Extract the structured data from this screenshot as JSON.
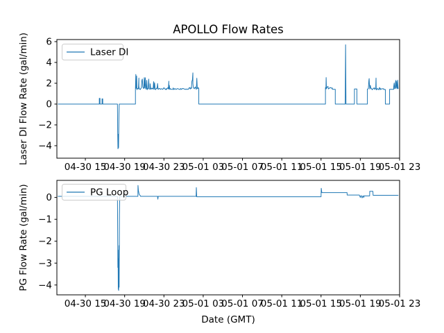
{
  "figure": {
    "title": "APOLLO Flow Rates",
    "line_color": "#1f77b4",
    "background": "#ffffff"
  },
  "chart_data": [
    {
      "type": "line",
      "title": "APOLLO Flow Rates",
      "ylabel": "Laser DI Flow Rate (gal/min)",
      "legend": [
        "Laser DI"
      ],
      "legend_position": "upper left",
      "grid": false,
      "ylim": [
        -5.2,
        6.2
      ],
      "yticks": [
        6,
        4,
        2,
        0,
        -2,
        -4
      ],
      "xlim_hours": [
        0.1,
        35.0
      ],
      "xticks_hours": [
        3,
        7,
        11,
        15,
        19,
        23,
        27,
        31,
        35
      ],
      "xtick_labels": [
        "04-30 15",
        "04-30 19",
        "04-30 23",
        "05-01 03",
        "05-01 07",
        "05-01 11",
        "05-01 15",
        "05-01 19",
        "05-01 23"
      ],
      "series_name": "Laser DI",
      "seed": 11,
      "segments": [
        {
          "type": "flat",
          "h0": 0.2,
          "h1": 4.42,
          "v": 0
        },
        {
          "type": "points",
          "pts": [
            [
              4.42,
              0.55
            ],
            [
              4.49,
              0.55
            ],
            [
              4.49,
              0
            ],
            [
              4.7,
              0
            ],
            [
              4.7,
              0.5
            ],
            [
              4.77,
              0.5
            ],
            [
              4.77,
              0
            ]
          ]
        },
        {
          "type": "flat",
          "h0": 4.77,
          "h1": 6.27,
          "v": 0
        },
        {
          "type": "points",
          "pts": [
            [
              6.29,
              -2.5
            ],
            [
              6.32,
              -4.3
            ],
            [
              6.35,
              -2.9
            ],
            [
              6.38,
              -4.2
            ],
            [
              6.42,
              -1.0
            ],
            [
              6.45,
              0
            ]
          ]
        },
        {
          "type": "flat",
          "h0": 6.45,
          "h1": 8.1,
          "v": 0
        },
        {
          "type": "noisy",
          "h0": 8.1,
          "h1": 9.6,
          "base": 1.48,
          "amp": 0.22,
          "spike_p": 0.34,
          "spike_max": 1.25,
          "features": [
            [
              8.14,
              2.85
            ],
            [
              8.22,
              2.7
            ],
            [
              8.45,
              2.5
            ]
          ]
        },
        {
          "type": "noisy",
          "h0": 9.6,
          "h1": 10.4,
          "base": 1.45,
          "amp": 0.18,
          "spike_p": 0.12,
          "spike_max": 0.8,
          "features": []
        },
        {
          "type": "noisy",
          "h0": 10.4,
          "h1": 11.25,
          "base": 1.45,
          "amp": 0.1,
          "spike_p": 0.03,
          "spike_max": 0.3,
          "features": []
        },
        {
          "type": "noisy",
          "h0": 11.25,
          "h1": 12.0,
          "base": 1.45,
          "amp": 0.16,
          "spike_p": 0.25,
          "spike_max": 0.75,
          "features": [
            [
              11.5,
              2.2
            ]
          ]
        },
        {
          "type": "noisy",
          "h0": 12.0,
          "h1": 13.45,
          "base": 1.45,
          "amp": 0.1,
          "spike_p": 0.05,
          "spike_max": 0.4,
          "features": []
        },
        {
          "type": "noisy",
          "h0": 13.45,
          "h1": 14.55,
          "base": 1.5,
          "amp": 0.2,
          "spike_p": 0.3,
          "spike_max": 1.1,
          "features": [
            [
              13.95,
              3.0
            ]
          ]
        },
        {
          "type": "flat",
          "h0": 14.55,
          "h1": 27.45,
          "v": 0
        },
        {
          "type": "noisy",
          "h0": 27.45,
          "h1": 28.15,
          "base": 1.55,
          "amp": 0.2,
          "spike_p": 0.3,
          "spike_max": 0.95,
          "features": [
            [
              27.52,
              2.55
            ]
          ]
        },
        {
          "type": "flat",
          "h0": 28.15,
          "h1": 28.45,
          "v": 1.42
        },
        {
          "type": "flat",
          "h0": 28.45,
          "h1": 29.44,
          "v": 0
        },
        {
          "type": "spike",
          "h": 29.5,
          "v": 5.7,
          "w": 0.08,
          "base": 0
        },
        {
          "type": "flat",
          "h0": 29.54,
          "h1": 30.4,
          "v": 0
        },
        {
          "type": "flat",
          "h0": 30.4,
          "h1": 30.65,
          "v": 1.45
        },
        {
          "type": "flat",
          "h0": 30.65,
          "h1": 31.72,
          "v": 0
        },
        {
          "type": "noisy",
          "h0": 31.72,
          "h1": 33.4,
          "base": 1.45,
          "amp": 0.16,
          "spike_p": 0.18,
          "spike_max": 0.9,
          "features": [
            [
              31.9,
              2.45
            ],
            [
              32.6,
              2.5
            ]
          ]
        },
        {
          "type": "flat",
          "h0": 33.4,
          "h1": 33.55,
          "v": 1.4
        },
        {
          "type": "flat",
          "h0": 33.55,
          "h1": 33.98,
          "v": 0
        },
        {
          "type": "flat",
          "h0": 33.98,
          "h1": 34.4,
          "v": 1.42
        },
        {
          "type": "noisy",
          "h0": 34.4,
          "h1": 34.88,
          "base": 1.55,
          "amp": 0.2,
          "spike_p": 0.28,
          "spike_max": 0.75,
          "features": [
            [
              34.8,
              2.3
            ]
          ]
        }
      ]
    },
    {
      "type": "line",
      "ylabel": "PG Flow Rate (gal/min)",
      "xlabel": "Date (GMT)",
      "legend": [
        "PG Loop"
      ],
      "legend_position": "upper left",
      "grid": false,
      "ylim": [
        -4.45,
        0.78
      ],
      "yticks": [
        0,
        -1,
        -2,
        -3,
        -4
      ],
      "xlim_hours": [
        0.1,
        35.0
      ],
      "xticks_hours": [
        3,
        7,
        11,
        15,
        19,
        23,
        27,
        31,
        35
      ],
      "xtick_labels": [
        "04-30 15",
        "04-30 19",
        "04-30 23",
        "05-01 03",
        "05-01 07",
        "05-01 11",
        "05-01 15",
        "05-01 19",
        "05-01 23"
      ],
      "series_name": "PG Loop",
      "seed": 7,
      "segments": [
        {
          "type": "flat",
          "h0": 0.2,
          "h1": 6.27,
          "v": 0.05
        },
        {
          "type": "points",
          "pts": [
            [
              6.29,
              -1.5
            ],
            [
              6.31,
              -3.2
            ],
            [
              6.33,
              -2.4
            ],
            [
              6.35,
              -4.2
            ],
            [
              6.37,
              -2.8
            ],
            [
              6.39,
              -4.25
            ],
            [
              6.42,
              -2.2
            ],
            [
              6.44,
              -4.1
            ],
            [
              6.47,
              -0.8
            ],
            [
              6.5,
              0.05
            ]
          ]
        },
        {
          "type": "flat",
          "h0": 6.5,
          "h1": 8.35,
          "v": 0.05
        },
        {
          "type": "points",
          "pts": [
            [
              8.36,
              0.55
            ],
            [
              8.4,
              0.32
            ],
            [
              8.48,
              0.14
            ],
            [
              8.62,
              0.07
            ]
          ]
        },
        {
          "type": "flat",
          "h0": 8.62,
          "h1": 10.35,
          "v": 0.05
        },
        {
          "type": "points",
          "pts": [
            [
              10.38,
              -0.08
            ],
            [
              10.42,
              0.05
            ]
          ]
        },
        {
          "type": "flat",
          "h0": 10.42,
          "h1": 14.28,
          "v": 0.05
        },
        {
          "type": "points",
          "pts": [
            [
              14.3,
              0.45
            ],
            [
              14.34,
              0.05
            ]
          ]
        },
        {
          "type": "flat",
          "h0": 14.34,
          "h1": 27.0,
          "v": 0.03
        },
        {
          "type": "points",
          "pts": [
            [
              27.02,
              0.42
            ],
            [
              27.08,
              0.22
            ]
          ]
        },
        {
          "type": "flat",
          "h0": 27.08,
          "h1": 29.65,
          "v": 0.22
        },
        {
          "type": "flat",
          "h0": 29.66,
          "h1": 30.9,
          "v": 0.11
        },
        {
          "type": "points",
          "pts": [
            [
              31.0,
              0.0
            ],
            [
              31.08,
              0.09
            ],
            [
              31.18,
              -0.02
            ],
            [
              31.28,
              0.08
            ],
            [
              31.34,
              0.0
            ],
            [
              31.42,
              0.08
            ]
          ]
        },
        {
          "type": "flat",
          "h0": 31.42,
          "h1": 31.95,
          "v": 0.07
        },
        {
          "type": "points",
          "pts": [
            [
              31.96,
              0.28
            ],
            [
              32.28,
              0.28
            ],
            [
              32.3,
              0.11
            ]
          ]
        },
        {
          "type": "flat",
          "h0": 32.3,
          "h1": 34.88,
          "v": 0.1
        }
      ]
    }
  ]
}
